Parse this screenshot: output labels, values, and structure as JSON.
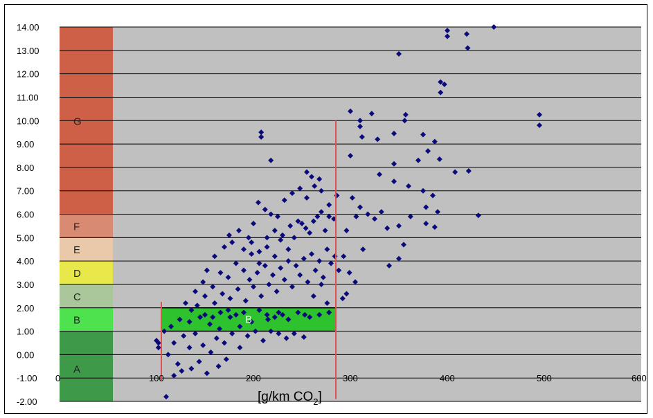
{
  "chart_data": {
    "type": "scatter",
    "title": "",
    "xlabel": "[g/km CO2]",
    "xlabel_main": "[g/km CO",
    "xlabel_sub": "2",
    "xlabel_close": "]",
    "ylabel": "",
    "xlim": [
      0,
      600
    ],
    "ylim": [
      -2,
      14
    ],
    "x_ticks": [
      0,
      100,
      200,
      300,
      400,
      500,
      600
    ],
    "y_ticks": [
      -2,
      -1,
      0,
      1,
      2,
      3,
      4,
      5,
      6,
      7,
      8,
      9,
      10,
      11,
      12,
      13,
      14
    ],
    "x_tick_labels": [
      "0",
      "100",
      "200",
      "300",
      "400",
      "500",
      "600"
    ],
    "y_tick_labels": [
      "-2.00",
      "-1.00",
      "0.00",
      "1.00",
      "2.00",
      "3.00",
      "4.00",
      "5.00",
      "6.00",
      "7.00",
      "8.00",
      "9.00",
      "10.00",
      "11.00",
      "12.00",
      "13.00",
      "14.00"
    ],
    "grid": true,
    "plot_background": "#c0c0c0",
    "marker_color": "#0a0a7a",
    "bands": [
      {
        "label": "A",
        "y0": -2,
        "y1": 1,
        "color": "#3e9a48"
      },
      {
        "label": "B",
        "y0": 1,
        "y1": 2,
        "color": "#4fe24f"
      },
      {
        "label": "C",
        "y0": 2,
        "y1": 3,
        "color": "#a9c79a"
      },
      {
        "label": "D",
        "y0": 3,
        "y1": 4,
        "color": "#e8e84a"
      },
      {
        "label": "E",
        "y0": 4,
        "y1": 5,
        "color": "#e9c9aa"
      },
      {
        "label": "F",
        "y0": 5,
        "y1": 6,
        "color": "#d98a72"
      },
      {
        "label": "G",
        "y0": 6,
        "y1": 14,
        "color": "#cf6048"
      }
    ],
    "band_x_range": [
      0,
      55
    ],
    "highlight_box": {
      "label": "B",
      "x0": 105,
      "x1": 285,
      "y0": 1,
      "y1": 2,
      "color": "#2ec22e"
    },
    "reference_lines": [
      {
        "x": 105,
        "y0": -1.1,
        "y1": 2.25,
        "color": "#e05050"
      },
      {
        "x": 285,
        "y0": -1.9,
        "y1": 10.0,
        "color": "#e05050"
      }
    ],
    "series": [
      {
        "points": [
          [
            448,
            14.0
          ],
          [
            400,
            13.85
          ],
          [
            420,
            13.7
          ],
          [
            400,
            13.6
          ],
          [
            421,
            13.1
          ],
          [
            350,
            12.85
          ],
          [
            393,
            11.65
          ],
          [
            397,
            11.55
          ],
          [
            393,
            11.2
          ],
          [
            495,
            10.25
          ],
          [
            495,
            9.8
          ],
          [
            300,
            10.4
          ],
          [
            322,
            10.3
          ],
          [
            310,
            10.0
          ],
          [
            310,
            9.75
          ],
          [
            357,
            10.25
          ],
          [
            356,
            10.0
          ],
          [
            312,
            9.3
          ],
          [
            345,
            9.45
          ],
          [
            375,
            9.4
          ],
          [
            387,
            9.1
          ],
          [
            328,
            9.2
          ],
          [
            208,
            9.5
          ],
          [
            208,
            9.3
          ],
          [
            218,
            8.3
          ],
          [
            408,
            7.8
          ],
          [
            422,
            7.85
          ],
          [
            432,
            5.95
          ],
          [
            380,
            8.7
          ],
          [
            370,
            8.3
          ],
          [
            392,
            8.35
          ],
          [
            345,
            8.15
          ],
          [
            300,
            8.5
          ],
          [
            255,
            7.8
          ],
          [
            260,
            7.6
          ],
          [
            268,
            7.5
          ],
          [
            330,
            7.7
          ],
          [
            345,
            7.4
          ],
          [
            360,
            7.2
          ],
          [
            375,
            7.0
          ],
          [
            385,
            6.8
          ],
          [
            378,
            6.3
          ],
          [
            390,
            6.1
          ],
          [
            362,
            5.9
          ],
          [
            350,
            5.5
          ],
          [
            378,
            5.6
          ],
          [
            387,
            5.45
          ],
          [
            355,
            4.7
          ],
          [
            350,
            4.1
          ],
          [
            340,
            3.8
          ],
          [
            302,
            6.7
          ],
          [
            310,
            6.3
          ],
          [
            318,
            6.0
          ],
          [
            325,
            5.8
          ],
          [
            332,
            6.1
          ],
          [
            338,
            5.4
          ],
          [
            296,
            5.3
          ],
          [
            306,
            5.9
          ],
          [
            313,
            4.5
          ],
          [
            293,
            4.2
          ],
          [
            299,
            3.5
          ],
          [
            305,
            3.1
          ],
          [
            296,
            2.6
          ],
          [
            292,
            2.4
          ],
          [
            276,
            2.2
          ],
          [
            270,
            3.0
          ],
          [
            262,
            2.5
          ],
          [
            253,
            1.7
          ],
          [
            252,
            0.75
          ],
          [
            236,
            1.5
          ],
          [
            226,
            1.8
          ],
          [
            215,
            1.5
          ],
          [
            198,
            1.4
          ],
          [
            186,
            1.2
          ],
          [
            176,
            1.6
          ],
          [
            165,
            1.1
          ],
          [
            155,
            1.3
          ],
          [
            145,
            1.6
          ],
          [
            134,
            1.4
          ],
          [
            124,
            1.5
          ],
          [
            115,
            1.2
          ],
          [
            118,
            0.5
          ],
          [
            112,
            0.0
          ],
          [
            122,
            -0.4
          ],
          [
            118,
            -0.9
          ],
          [
            126,
            -0.7
          ],
          [
            136,
            -0.6
          ],
          [
            144,
            -0.3
          ],
          [
            152,
            -0.8
          ],
          [
            164,
            -0.5
          ],
          [
            172,
            -0.2
          ],
          [
            110,
            -1.8
          ],
          [
            100,
            0.6
          ],
          [
            102,
            0.5
          ],
          [
            102,
            0.3
          ],
          [
            108,
            1.0
          ],
          [
            130,
            2.2
          ],
          [
            140,
            2.7
          ],
          [
            148,
            3.1
          ],
          [
            152,
            3.6
          ],
          [
            160,
            4.2
          ],
          [
            170,
            4.6
          ],
          [
            175,
            5.1
          ],
          [
            178,
            4.8
          ],
          [
            185,
            5.3
          ],
          [
            195,
            5.0
          ],
          [
            200,
            5.6
          ],
          [
            205,
            6.5
          ],
          [
            212,
            6.2
          ],
          [
            218,
            6.0
          ],
          [
            225,
            5.9
          ],
          [
            232,
            6.6
          ],
          [
            240,
            6.9
          ],
          [
            248,
            7.1
          ],
          [
            255,
            6.7
          ],
          [
            263,
            7.2
          ],
          [
            270,
            7.0
          ],
          [
            278,
            6.4
          ],
          [
            283,
            5.8
          ],
          [
            286,
            6.8
          ],
          [
            274,
            5.3
          ],
          [
            266,
            5.9
          ],
          [
            258,
            5.2
          ],
          [
            250,
            5.6
          ],
          [
            242,
            5.0
          ],
          [
            236,
            4.5
          ],
          [
            228,
            4.9
          ],
          [
            222,
            4.2
          ],
          [
            214,
            4.6
          ],
          [
            206,
            3.9
          ],
          [
            198,
            4.3
          ],
          [
            190,
            3.6
          ],
          [
            182,
            3.9
          ],
          [
            174,
            3.3
          ],
          [
            166,
            3.5
          ],
          [
            158,
            2.9
          ],
          [
            150,
            2.5
          ],
          [
            142,
            2.1
          ],
          [
            136,
            1.9
          ],
          [
            128,
            0.8
          ],
          [
            134,
            0.3
          ],
          [
            140,
            0.9
          ],
          [
            148,
            0.4
          ],
          [
            156,
            0.1
          ],
          [
            162,
            0.7
          ],
          [
            170,
            0.5
          ],
          [
            178,
            0.9
          ],
          [
            186,
            0.3
          ],
          [
            194,
            0.8
          ],
          [
            202,
            1.0
          ],
          [
            210,
            0.6
          ],
          [
            218,
            1.0
          ],
          [
            226,
            0.9
          ],
          [
            234,
            0.7
          ],
          [
            242,
            0.9
          ],
          [
            160,
            2.2
          ],
          [
            168,
            2.6
          ],
          [
            176,
            2.4
          ],
          [
            184,
            2.8
          ],
          [
            192,
            2.3
          ],
          [
            200,
            2.9
          ],
          [
            208,
            2.5
          ],
          [
            216,
            3.0
          ],
          [
            224,
            2.7
          ],
          [
            232,
            3.2
          ],
          [
            240,
            2.9
          ],
          [
            248,
            3.4
          ],
          [
            256,
            3.1
          ],
          [
            264,
            3.6
          ],
          [
            272,
            3.3
          ],
          [
            280,
            3.9
          ],
          [
            288,
            3.6
          ],
          [
            196,
            3.2
          ],
          [
            204,
            3.5
          ],
          [
            212,
            3.8
          ],
          [
            220,
            3.4
          ],
          [
            228,
            3.7
          ],
          [
            236,
            4.0
          ],
          [
            244,
            3.8
          ],
          [
            252,
            4.1
          ],
          [
            260,
            4.3
          ],
          [
            268,
            4.0
          ],
          [
            276,
            4.5
          ],
          [
            284,
            4.2
          ],
          [
            190,
            4.5
          ],
          [
            198,
            4.8
          ],
          [
            206,
            4.4
          ],
          [
            214,
            5.0
          ],
          [
            222,
            5.3
          ],
          [
            230,
            5.1
          ],
          [
            238,
            5.5
          ],
          [
            246,
            5.7
          ],
          [
            254,
            5.4
          ],
          [
            262,
            5.7
          ],
          [
            270,
            6.1
          ],
          [
            278,
            5.9
          ],
          [
            150,
            1.7
          ],
          [
            158,
            1.6
          ],
          [
            166,
            1.8
          ],
          [
            174,
            1.9
          ],
          [
            182,
            1.7
          ],
          [
            190,
            1.8
          ],
          [
            206,
            1.9
          ],
          [
            214,
            1.7
          ],
          [
            222,
            1.6
          ],
          [
            230,
            1.7
          ],
          [
            246,
            1.8
          ],
          [
            258,
            1.6
          ],
          [
            268,
            1.7
          ],
          [
            278,
            1.8
          ]
        ]
      }
    ]
  }
}
